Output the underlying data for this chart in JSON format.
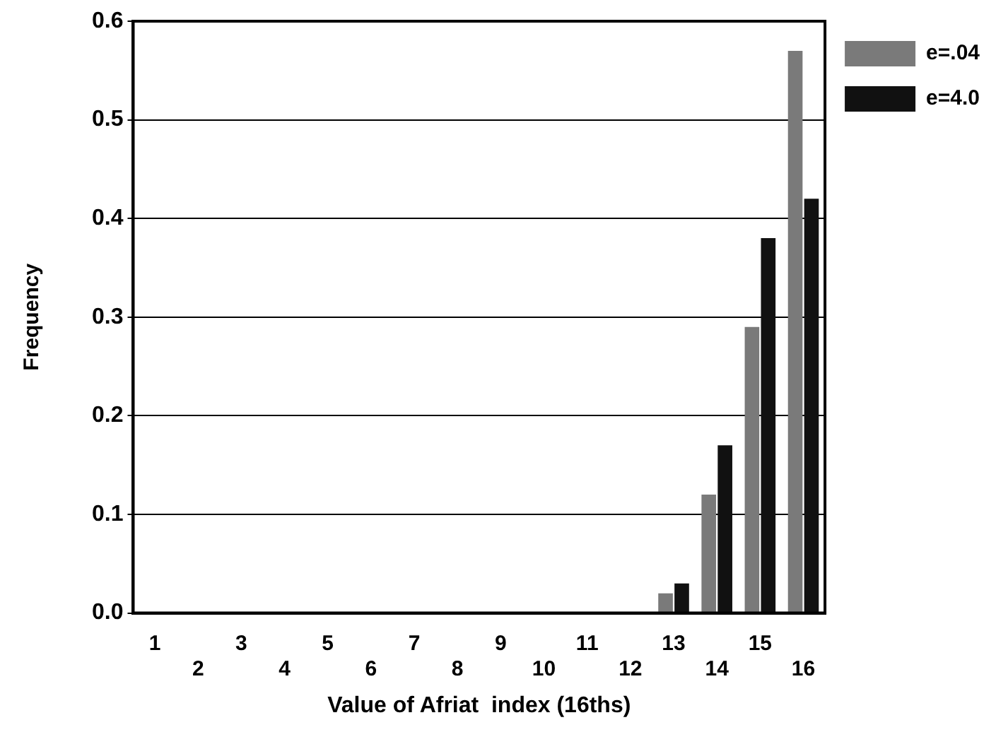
{
  "chart_data": {
    "type": "bar",
    "xlabel": "Value of Afriat  index (16ths)",
    "ylabel": "Frequency",
    "categories": [
      "1",
      "2",
      "3",
      "4",
      "5",
      "6",
      "7",
      "8",
      "9",
      "10",
      "11",
      "12",
      "13",
      "14",
      "15",
      "16"
    ],
    "series": [
      {
        "name": "e=.04",
        "color": "#7a7a7a",
        "values": [
          0,
          0,
          0,
          0,
          0,
          0,
          0,
          0,
          0,
          0,
          0,
          0,
          0.02,
          0.12,
          0.29,
          0.57
        ]
      },
      {
        "name": "e=4.0",
        "color": "#111111",
        "values": [
          0,
          0,
          0,
          0,
          0,
          0,
          0,
          0,
          0,
          0,
          0,
          0,
          0.03,
          0.17,
          0.38,
          0.42
        ]
      }
    ],
    "ylim": [
      0,
      0.6
    ],
    "yticks": [
      {
        "value": 0,
        "label": "0.0"
      },
      {
        "value": 0.1,
        "label": "0.1"
      },
      {
        "value": 0.2,
        "label": "0.2"
      },
      {
        "value": 0.3,
        "label": "0.3"
      },
      {
        "value": 0.4,
        "label": "0.4"
      },
      {
        "value": 0.5,
        "label": "0.5"
      },
      {
        "value": 0.6,
        "label": "0.6"
      }
    ],
    "grid": "y",
    "legend": "top right"
  }
}
